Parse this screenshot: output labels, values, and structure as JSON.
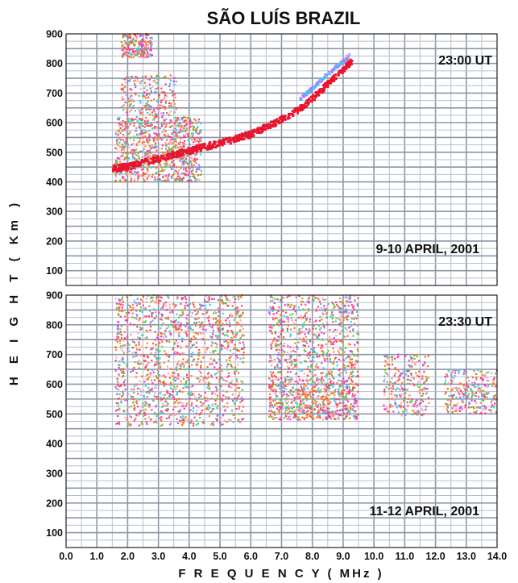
{
  "chart_data": {
    "type": "scatter",
    "title": "SÃO LUÍS BRAZIL",
    "xlabel": "F R E Q U E N C Y ( MHz )",
    "ylabel": "H E I G H T ( Km )",
    "xlim": [
      0,
      14
    ],
    "ylim": [
      50,
      900
    ],
    "x_ticks": [
      "0.0",
      "1.0",
      "2.0",
      "3.0",
      "4.0",
      "5.0",
      "6.0",
      "7.0",
      "8.0",
      "9.0",
      "10.0",
      "11.0",
      "12.0",
      "13.0",
      "14.0"
    ],
    "y_ticks": [
      "100",
      "200",
      "300",
      "400",
      "500",
      "600",
      "700",
      "800",
      "900"
    ],
    "grid": true,
    "panels": [
      {
        "time_label": "23:00 UT",
        "date_label": "9-10 APRIL, 2001",
        "trace": {
          "x": [
            1.5,
            2.0,
            2.5,
            3.0,
            3.5,
            4.0,
            4.5,
            5.0,
            5.5,
            6.0,
            6.5,
            7.0,
            7.5,
            8.0,
            8.5,
            9.0,
            9.3
          ],
          "y": [
            445,
            450,
            465,
            478,
            492,
            505,
            518,
            530,
            545,
            560,
            585,
            610,
            640,
            680,
            730,
            780,
            810
          ]
        },
        "clutter": [
          {
            "x": [
              1.6,
              4.4
            ],
            "y": [
              400,
              620
            ]
          },
          {
            "x": [
              1.8,
              3.6
            ],
            "y": [
              620,
              760
            ]
          },
          {
            "x": [
              1.8,
              2.8
            ],
            "y": [
              820,
              900
            ]
          }
        ],
        "upper_trace": {
          "x": [
            7.6,
            8.0,
            8.4,
            8.8,
            9.2
          ],
          "y": [
            680,
            715,
            755,
            790,
            825
          ]
        }
      },
      {
        "time_label": "23:30 UT",
        "date_label": "11-12 APRIL, 2001",
        "bands": [
          {
            "x": [
              1.6,
              5.8
            ],
            "y": [
              460,
              900
            ]
          },
          {
            "x": [
              6.6,
              9.5
            ],
            "y": [
              480,
              620
            ]
          },
          {
            "x": [
              6.6,
              9.5
            ],
            "y": [
              620,
              900
            ]
          },
          {
            "x": [
              10.3,
              11.8
            ],
            "y": [
              490,
              700
            ]
          },
          {
            "x": [
              12.3,
              14.0
            ],
            "y": [
              500,
              650
            ]
          }
        ]
      }
    ]
  },
  "colors": {
    "grid_major": "#8a97a8",
    "grid_minor": "#b4bfcc",
    "trace": "#e8152f",
    "clutter": [
      "#ff3b6e",
      "#ff6a00",
      "#ff9ec8",
      "#4ed04e",
      "#e040e0",
      "#40c0ff",
      "#ff8040"
    ]
  }
}
